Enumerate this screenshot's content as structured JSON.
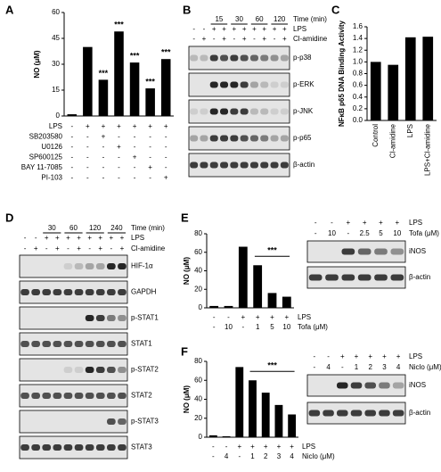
{
  "chart_data": [
    {
      "type": "bar",
      "panel": "A",
      "y_label": "NO (μM)",
      "values": [
        1,
        40,
        21,
        49,
        31,
        16,
        33
      ],
      "significance": [
        null,
        null,
        "***",
        "***",
        "***",
        "***",
        "***"
      ],
      "color": "#000000",
      "ylim": [
        0,
        60
      ],
      "yticks": [
        0,
        15,
        30,
        45,
        60
      ],
      "conditions": [
        {
          "name": "LPS",
          "values": [
            "-",
            "+",
            "+",
            "+",
            "+",
            "+",
            "+"
          ]
        },
        {
          "name": "SB203580",
          "values": [
            "-",
            "-",
            "+",
            "-",
            "-",
            "-",
            "-"
          ]
        },
        {
          "name": "U0126",
          "values": [
            "-",
            "-",
            "-",
            "+",
            "-",
            "-",
            "-"
          ]
        },
        {
          "name": "SP600125",
          "values": [
            "-",
            "-",
            "-",
            "-",
            "+",
            "-",
            "-"
          ]
        },
        {
          "name": "BAY 11-7085",
          "values": [
            "-",
            "-",
            "-",
            "-",
            "-",
            "+",
            "-"
          ]
        },
        {
          "name": "PI-103",
          "values": [
            "-",
            "-",
            "-",
            "-",
            "-",
            "-",
            "+"
          ]
        }
      ]
    },
    {
      "type": "bar",
      "panel": "C",
      "y_label": "NFκB p65 DNA Binding Activity",
      "categories": [
        "Control",
        "Cl-amidine",
        "LPS",
        "LPS+Cl-amidine"
      ],
      "values": [
        1.0,
        0.95,
        1.42,
        1.43
      ],
      "color": "#000000",
      "ylim": [
        0,
        1.6
      ],
      "yticks": [
        {
          "value": 0,
          "label": "0.0"
        },
        0.2,
        0.4,
        0.6,
        0.8,
        {
          "value": 1,
          "label": "1.0"
        },
        1.2,
        1.4,
        1.6
      ]
    },
    {
      "type": "bar",
      "panel": "E",
      "y_label": "NO (μM)",
      "values": [
        2,
        2,
        66,
        46,
        16,
        12
      ],
      "annotation": "***",
      "color": "#000000",
      "ylim": [
        0,
        80
      ],
      "yticks": [
        0,
        20,
        40,
        60,
        80
      ],
      "conditions": [
        {
          "name": "LPS",
          "values": [
            "-",
            "-",
            "+",
            "+",
            "+",
            "+"
          ]
        },
        {
          "name": "Tofa (μM)",
          "values": [
            "-",
            "10",
            "-",
            "1",
            "5",
            "10"
          ]
        }
      ]
    },
    {
      "type": "bar",
      "panel": "F",
      "y_label": "NO (μM)",
      "values": [
        2,
        1,
        74,
        60,
        47,
        34,
        24
      ],
      "annotation": "***",
      "color": "#000000",
      "ylim": [
        0,
        80
      ],
      "yticks": [
        0,
        20,
        40,
        60,
        80
      ],
      "conditions": [
        {
          "name": "LPS",
          "values": [
            "-",
            "-",
            "+",
            "+",
            "+",
            "+",
            "+"
          ]
        },
        {
          "name": "Niclo (μM)",
          "values": [
            "-",
            "4",
            "-",
            "1",
            "2",
            "3",
            "4"
          ]
        }
      ]
    }
  ],
  "blots": [
    {
      "panel": "B",
      "header": {
        "label": "Time (min)",
        "groups": [
          "15",
          "30",
          "60",
          "120"
        ]
      },
      "conditions": [
        {
          "name": "LPS",
          "values": [
            "-",
            "-",
            "+",
            "+",
            "+",
            "+",
            "+",
            "+",
            "+",
            "+"
          ]
        },
        {
          "name": "Cl-amidine",
          "values": [
            "-",
            "+",
            "-",
            "+",
            "-",
            "+",
            "-",
            "+",
            "-",
            "+"
          ]
        }
      ],
      "bands": [
        "p-p38",
        "p-ERK",
        "p-JNK",
        "p-p65",
        "β-actin"
      ]
    },
    {
      "panel": "D",
      "header": {
        "label": "Time (min)",
        "groups": [
          "30",
          "60",
          "120",
          "240"
        ]
      },
      "conditions": [
        {
          "name": "LPS",
          "values": [
            "-",
            "-",
            "+",
            "+",
            "+",
            "+",
            "+",
            "+",
            "+",
            "+"
          ]
        },
        {
          "name": "Cl-amidine",
          "values": [
            "-",
            "+",
            "-",
            "+",
            "-",
            "+",
            "-",
            "+",
            "-",
            "+"
          ]
        }
      ],
      "bands": [
        "HIF-1α",
        "GAPDH",
        "p-STAT1",
        "STAT1",
        "p-STAT2",
        "STAT2",
        "p-STAT3",
        "STAT3"
      ]
    },
    {
      "conditions": [
        {
          "name": "LPS",
          "values": [
            "-",
            "-",
            "+",
            "+",
            "+",
            "+"
          ]
        },
        {
          "name": "Tofa (μM)",
          "values": [
            "-",
            "10",
            "-",
            "2.5",
            "5",
            "10"
          ]
        }
      ],
      "bands": [
        "iNOS",
        "β-actin"
      ]
    },
    {
      "conditions": [
        {
          "name": "LPS",
          "values": [
            "-",
            "-",
            "+",
            "+",
            "+",
            "+",
            "+"
          ]
        },
        {
          "name": "Niclo (μM)",
          "values": [
            "-",
            "4",
            "-",
            "1",
            "2",
            "3",
            "4"
          ]
        }
      ],
      "bands": [
        "iNOS",
        "β-actin"
      ]
    }
  ]
}
